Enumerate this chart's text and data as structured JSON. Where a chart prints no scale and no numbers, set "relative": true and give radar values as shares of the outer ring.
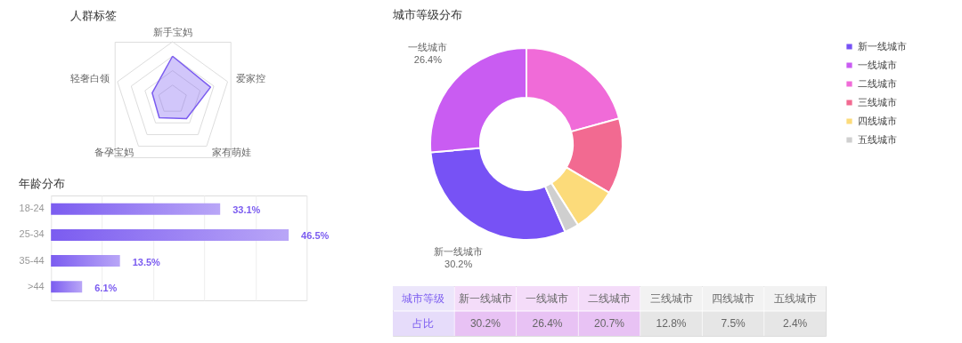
{
  "chart_data": [
    {
      "type": "radar",
      "title": "人群标签",
      "categories": [
        "新手宝妈",
        "爱家控",
        "家有萌娃",
        "备孕宝妈",
        "轻奢白领"
      ],
      "relative": true,
      "grid": true,
      "series": [
        {
          "color": "#7b5cf0",
          "values": [
            0.75,
            0.69,
            0.41,
            0.39,
            0.37
          ]
        }
      ]
    },
    {
      "type": "bar",
      "orientation": "horizontal",
      "title": "年龄分布",
      "categories": [
        "18-24",
        "25-34",
        "35-44",
        ">44"
      ],
      "values": [
        33.1,
        46.5,
        13.5,
        6.1
      ],
      "color": "#7b5cf0",
      "value_labels": [
        "33.1%",
        "46.5%",
        "13.5%",
        "6.1%"
      ],
      "xlim": [
        0,
        50
      ],
      "xticks": [
        {
          "value": 0,
          "label": null
        },
        {
          "value": 10,
          "label": null
        },
        {
          "value": 20,
          "label": null
        },
        {
          "value": 30,
          "label": null
        },
        {
          "value": 40,
          "label": null
        },
        {
          "value": 50,
          "label": null
        }
      ],
      "grid": "x",
      "tick_labels": "y"
    },
    {
      "type": "donut",
      "title": "城市等级分布",
      "categories": [
        "新一线城市",
        "一线城市",
        "二线城市",
        "三线城市",
        "四线城市",
        "五线城市"
      ],
      "values": [
        30.2,
        26.4,
        20.7,
        12.8,
        7.5,
        2.4
      ],
      "colors": [
        "#7752f5",
        "#c95cf2",
        "#f06bd8",
        "#f26a91",
        "#fcdb7a",
        "#cfcfcf"
      ],
      "legend": "right",
      "value_labels": [
        "30.2%",
        "26.4%",
        null,
        null,
        null,
        null
      ],
      "annotations": [
        "城市等级",
        "占比",
        "30.2%",
        "26.4%",
        "20.7%",
        "12.8%",
        "7.5%",
        "2.4%"
      ]
    }
  ]
}
